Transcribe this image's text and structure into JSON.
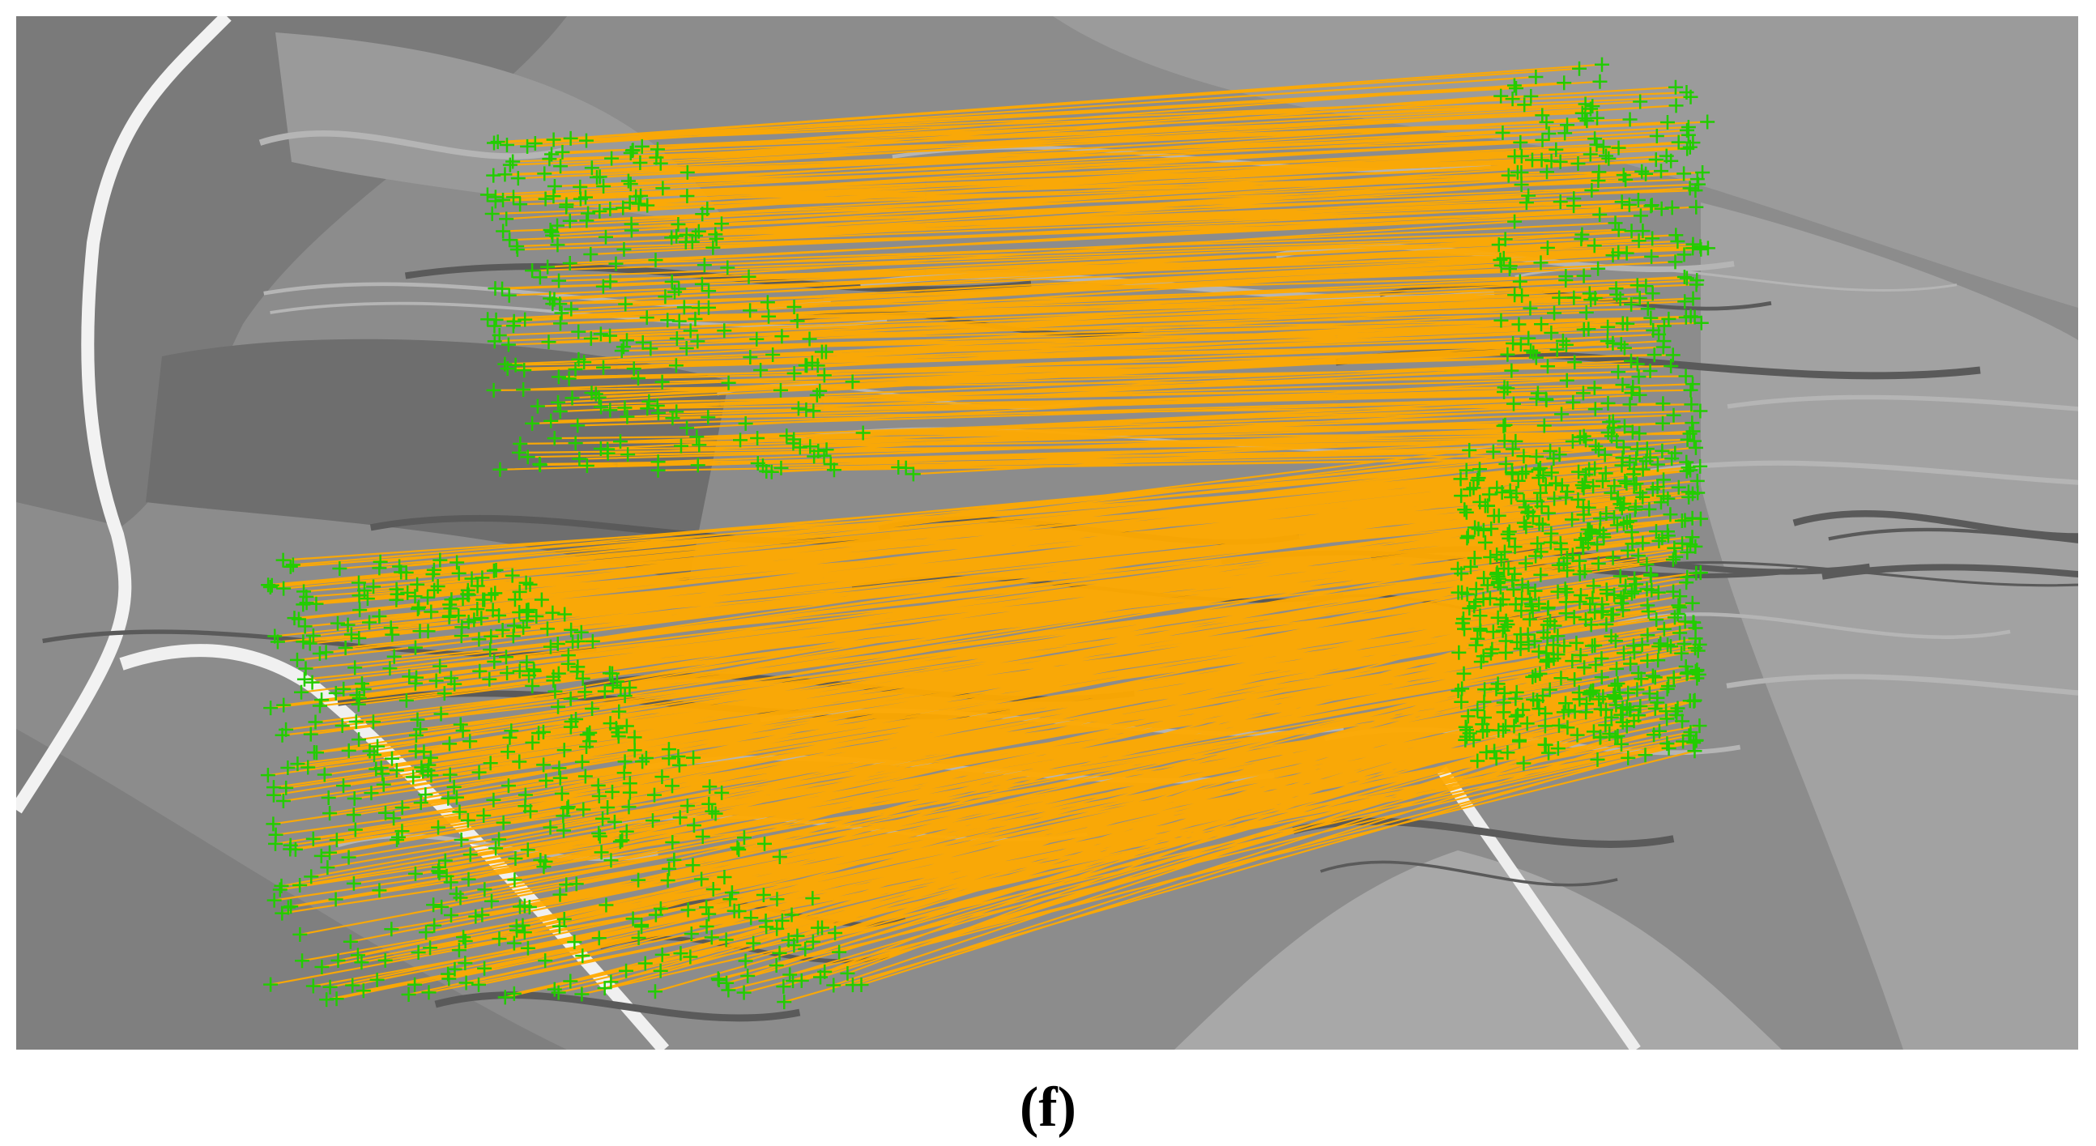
{
  "caption": "(f)"
}
